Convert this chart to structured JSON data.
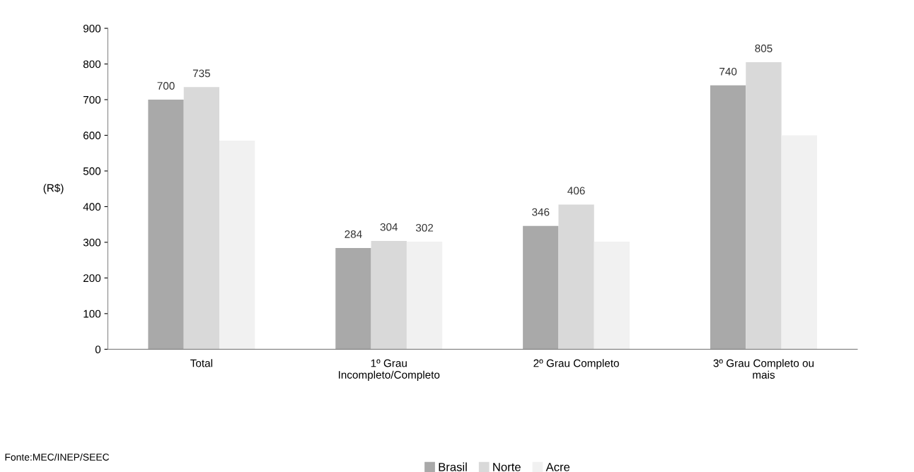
{
  "chart_data": {
    "type": "bar",
    "categories": [
      "Total",
      "1º Grau\nIncompleto/Completo",
      "2º Grau Completo",
      "3º Grau Completo ou\nmais"
    ],
    "ylabel": "(R$)",
    "ylim": [
      0,
      900
    ],
    "yticks": [
      0,
      100,
      200,
      300,
      400,
      500,
      600,
      700,
      800,
      900
    ],
    "grid": false,
    "legend": "bottom",
    "series": [
      {
        "name": "Brasil",
        "color": "#a9a9a9",
        "values": [
          700,
          284,
          346,
          740
        ],
        "value_labels": [
          "700",
          "284",
          "346",
          "740"
        ]
      },
      {
        "name": "Norte",
        "color": "#d9d9d9",
        "values": [
          735,
          304,
          406,
          805
        ],
        "value_labels": [
          "735",
          "304",
          "406",
          "805"
        ]
      },
      {
        "name": "Acre",
        "color": "#f1f1f1",
        "values": [
          585,
          302,
          302,
          600
        ],
        "value_labels": [
          null,
          "302",
          null,
          null
        ]
      }
    ],
    "annotations": [
      "Fonte:MEC/INEP/SEEC"
    ]
  }
}
